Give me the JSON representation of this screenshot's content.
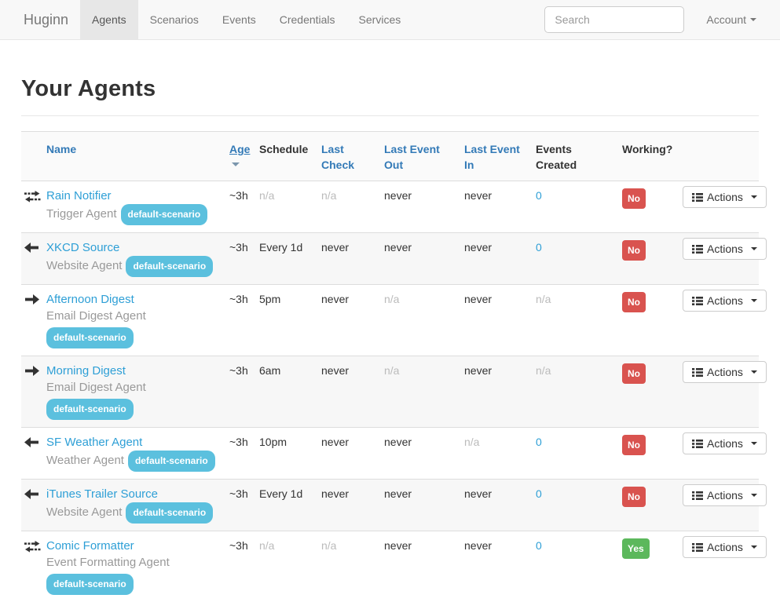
{
  "navbar": {
    "brand": "Huginn",
    "items": [
      {
        "label": "Agents",
        "active": true
      },
      {
        "label": "Scenarios",
        "active": false
      },
      {
        "label": "Events",
        "active": false
      },
      {
        "label": "Credentials",
        "active": false
      },
      {
        "label": "Services",
        "active": false
      }
    ],
    "search_placeholder": "Search",
    "account_label": "Account"
  },
  "page": {
    "title": "Your Agents"
  },
  "table": {
    "headers": [
      {
        "label": "Name",
        "link": true
      },
      {
        "label": "Age",
        "link": true,
        "sorted": "desc"
      },
      {
        "label": "Schedule",
        "link": false
      },
      {
        "label": "Last\nCheck",
        "link": true
      },
      {
        "label": "Last Event\nOut",
        "link": true
      },
      {
        "label": "Last Event\nIn",
        "link": true
      },
      {
        "label": "Events\nCreated",
        "link": false
      },
      {
        "label": "Working?",
        "link": false
      }
    ],
    "actions_label": "Actions",
    "rows": [
      {
        "icon": "exchange-arrows",
        "name": "Rain Notifier",
        "type": "Trigger Agent",
        "scenario": "default-scenario",
        "scenario_inline": true,
        "age": "~3h",
        "schedule": "n/a",
        "last_check": "n/a",
        "last_event_out": "never",
        "last_event_in": "never",
        "events_created": "0",
        "working": "No"
      },
      {
        "icon": "arrow-left",
        "name": "XKCD Source",
        "type": "Website Agent",
        "scenario": "default-scenario",
        "scenario_inline": true,
        "age": "~3h",
        "schedule": "Every 1d",
        "last_check": "never",
        "last_event_out": "never",
        "last_event_in": "never",
        "events_created": "0",
        "working": "No"
      },
      {
        "icon": "arrow-right",
        "name": "Afternoon Digest",
        "type": "Email Digest Agent",
        "scenario": "default-scenario",
        "scenario_inline": false,
        "age": "~3h",
        "schedule": "5pm",
        "last_check": "never",
        "last_event_out": "n/a",
        "last_event_in": "never",
        "events_created": "n/a",
        "working": "No"
      },
      {
        "icon": "arrow-right",
        "name": "Morning Digest",
        "type": "Email Digest Agent",
        "scenario": "default-scenario",
        "scenario_inline": false,
        "age": "~3h",
        "schedule": "6am",
        "last_check": "never",
        "last_event_out": "n/a",
        "last_event_in": "never",
        "events_created": "n/a",
        "working": "No"
      },
      {
        "icon": "arrow-left",
        "name": "SF Weather Agent",
        "type": "Weather Agent",
        "scenario": "default-scenario",
        "scenario_inline": true,
        "age": "~3h",
        "schedule": "10pm",
        "last_check": "never",
        "last_event_out": "never",
        "last_event_in": "n/a",
        "events_created": "0",
        "working": "No"
      },
      {
        "icon": "arrow-left",
        "name": "iTunes Trailer Source",
        "type": "Website Agent",
        "scenario": "default-scenario",
        "scenario_inline": true,
        "age": "~3h",
        "schedule": "Every 1d",
        "last_check": "never",
        "last_event_out": "never",
        "last_event_in": "never",
        "events_created": "0",
        "working": "No"
      },
      {
        "icon": "exchange-arrows",
        "name": "Comic Formatter",
        "type": "Event Formatting Agent",
        "scenario": "default-scenario",
        "scenario_inline": false,
        "age": "~3h",
        "schedule": "n/a",
        "last_check": "n/a",
        "last_event_out": "never",
        "last_event_in": "never",
        "events_created": "0",
        "working": "Yes"
      }
    ]
  },
  "colors": {
    "header_link": "#337ab7",
    "agent_link": "#2e9fd6",
    "scenario_badge": "#5bc0de",
    "no_badge": "#d9534f",
    "yes_badge": "#5cb85c"
  }
}
